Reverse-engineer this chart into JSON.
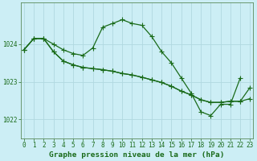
{
  "title": "Graphe pression niveau de la mer (hPa)",
  "background_color": "#cceef5",
  "grid_color": "#b0d8e0",
  "line_color": "#1a6b1a",
  "marker_color": "#1a6b1a",
  "ylim": [
    1021.5,
    1025.1
  ],
  "xlim": [
    -0.3,
    23.3
  ],
  "yticks": [
    1022,
    1023,
    1024
  ],
  "xticks": [
    0,
    1,
    2,
    3,
    4,
    5,
    6,
    7,
    8,
    9,
    10,
    11,
    12,
    13,
    14,
    15,
    16,
    17,
    18,
    19,
    20,
    21,
    22,
    23
  ],
  "series": [
    [
      1023.85,
      1024.15,
      1024.15,
      1024.0,
      1023.85,
      1023.75,
      1023.7,
      1023.9,
      1024.45,
      1024.55,
      1024.65,
      1024.55,
      1024.5,
      1024.2,
      1023.8,
      1023.5,
      1023.1,
      1022.7,
      1022.2,
      1022.1,
      1022.4,
      1022.4,
      1023.1,
      null
    ],
    [
      1023.85,
      1024.15,
      1024.15,
      1023.8,
      1023.55,
      1023.45,
      1023.38,
      1023.35,
      1023.32,
      1023.28,
      1023.22,
      1023.18,
      1023.12,
      1023.05,
      1022.98,
      1022.88,
      1022.75,
      1022.65,
      1022.52,
      1022.45,
      1022.45,
      1022.48,
      1022.48,
      1022.85
    ],
    [
      1023.85,
      1024.15,
      1024.15,
      1023.8,
      1023.55,
      1023.45,
      1023.38,
      1023.35,
      1023.32,
      1023.28,
      1023.22,
      1023.18,
      1023.12,
      1023.05,
      1022.98,
      1022.88,
      1022.75,
      1022.65,
      1022.52,
      1022.45,
      1022.45,
      1022.48,
      1022.48,
      1022.55
    ]
  ],
  "marker_size": 2.2,
  "line_width": 0.9,
  "tick_fontsize": 5.5,
  "label_fontsize": 6.8,
  "tick_color": "#1a6b1a",
  "axis_color": "#5a8a5a",
  "fig_width": 3.2,
  "fig_height": 2.0,
  "dpi": 100
}
